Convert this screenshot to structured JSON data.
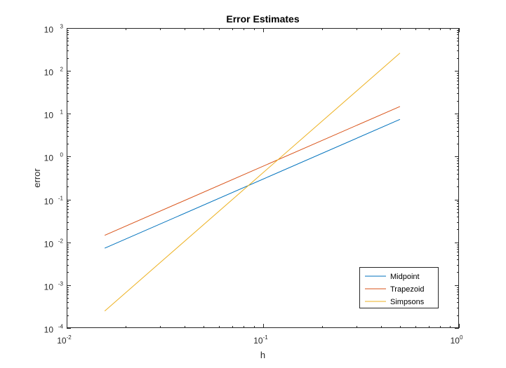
{
  "chart_data": {
    "type": "line",
    "title": "Error Estimates",
    "xlabel": "h",
    "ylabel": "error",
    "xscale": "log",
    "yscale": "log",
    "xlim": [
      0.01,
      1
    ],
    "ylim": [
      0.0001,
      1000
    ],
    "grid": false,
    "legend_position": "bottom-right",
    "x_ticks": [
      {
        "value": 0.01,
        "base": "10",
        "exp": "-2"
      },
      {
        "value": 0.1,
        "base": "10",
        "exp": "-1"
      },
      {
        "value": 1,
        "base": "10",
        "exp": "0"
      }
    ],
    "y_ticks": [
      {
        "value": 0.0001,
        "base": "10",
        "exp": "-4"
      },
      {
        "value": 0.001,
        "base": "10",
        "exp": "-3"
      },
      {
        "value": 0.01,
        "base": "10",
        "exp": "-2"
      },
      {
        "value": 0.1,
        "base": "10",
        "exp": "-1"
      },
      {
        "value": 1,
        "base": "10",
        "exp": "0"
      },
      {
        "value": 10,
        "base": "10",
        "exp": "1"
      },
      {
        "value": 100,
        "base": "10",
        "exp": "2"
      },
      {
        "value": 1000,
        "base": "10",
        "exp": "3"
      }
    ],
    "series": [
      {
        "name": "Midpoint",
        "color": "#0072BD",
        "x": [
          0.015625,
          0.5
        ],
        "y": [
          0.0073,
          7.4
        ]
      },
      {
        "name": "Trapezoid",
        "color": "#D95319",
        "x": [
          0.015625,
          0.5
        ],
        "y": [
          0.0146,
          14.8
        ]
      },
      {
        "name": "Simpsons",
        "color": "#EDB120",
        "x": [
          0.015625,
          0.5
        ],
        "y": [
          0.00025,
          260
        ]
      }
    ]
  }
}
